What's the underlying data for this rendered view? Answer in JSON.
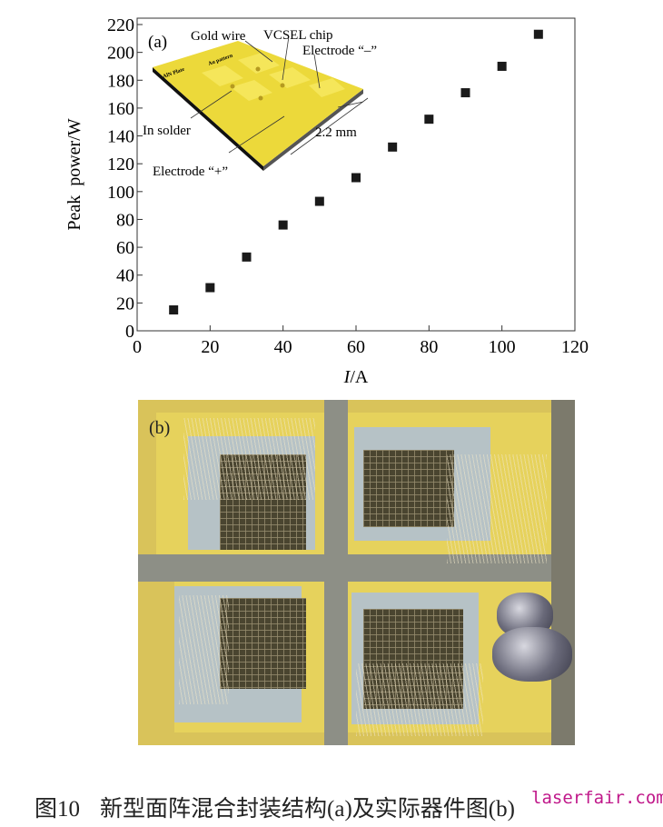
{
  "chart_data": {
    "type": "scatter",
    "panel_label": "(a)",
    "xlabel_italic": "I",
    "xlabel_unit": "/A",
    "ylabel": "Peak  power/W",
    "xlim": [
      0,
      120
    ],
    "ylim": [
      0,
      220
    ],
    "xticks": [
      0,
      20,
      40,
      60,
      80,
      100,
      120
    ],
    "yticks": [
      0,
      20,
      40,
      60,
      80,
      100,
      120,
      140,
      160,
      180,
      200,
      220
    ],
    "grid": false,
    "marker": "square",
    "marker_color": "#1a1a1a",
    "x": [
      10,
      20,
      30,
      40,
      50,
      60,
      70,
      80,
      90,
      100,
      110
    ],
    "y": [
      15,
      31,
      53,
      76,
      93,
      110,
      132,
      152,
      171,
      190,
      213
    ],
    "inset": {
      "labels": {
        "gold_wire": "Gold wire",
        "vcsel_chip": "VCSEL chip",
        "electrode_minus": "Electrode “–”",
        "in_solder": "In solder",
        "dimension": "2.2 mm",
        "electrode_plus": "Electrode “+”",
        "aln_plate": "AlN Plate",
        "au_pattern": "Au pattern"
      },
      "plate_color": "#ecd93a"
    }
  },
  "photo": {
    "panel_label": "(b)"
  },
  "caption": {
    "number": "图10",
    "text": "新型面阵混合封装结构(a)及实际器件图(b)"
  },
  "watermark": "laserfair.com"
}
